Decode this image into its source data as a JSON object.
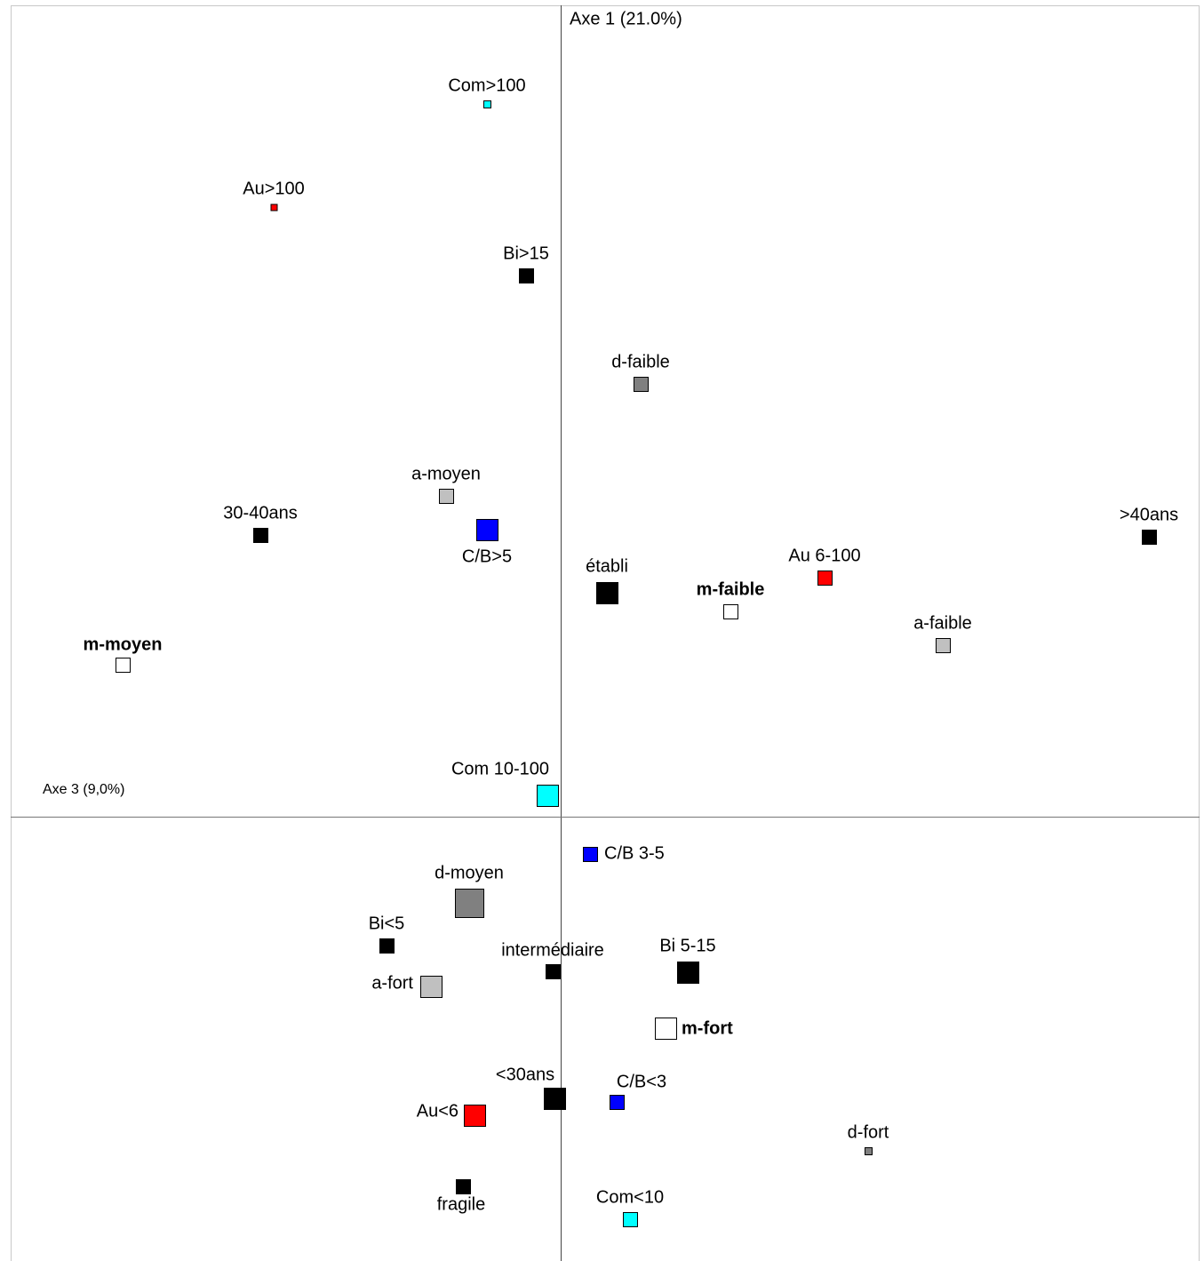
{
  "axes": {
    "axis_1": "Axe 1 (21.0%)",
    "axis_3": "Axe 3 (9,0%)"
  },
  "points": [
    {
      "label": "Com>100"
    },
    {
      "label": "Au>100"
    },
    {
      "label": "Bi>15"
    },
    {
      "label": "d-faible"
    },
    {
      "label": "a-moyen"
    },
    {
      "label": "C/B>5"
    },
    {
      "label": "30-40ans"
    },
    {
      "label": ">40ans"
    },
    {
      "label": "Au 6-100"
    },
    {
      "label": "établi"
    },
    {
      "label": "m-faible"
    },
    {
      "label": "a-faible"
    },
    {
      "label": "m-moyen"
    },
    {
      "label": "Com 10-100"
    },
    {
      "label": "C/B 3-5"
    },
    {
      "label": "d-moyen"
    },
    {
      "label": "Bi<5"
    },
    {
      "label": "intermédiaire"
    },
    {
      "label": "Bi 5-15"
    },
    {
      "label": "a-fort"
    },
    {
      "label": "m-fort"
    },
    {
      "label": "<30ans"
    },
    {
      "label": "C/B<3"
    },
    {
      "label": "Au<6"
    },
    {
      "label": "d-fort"
    },
    {
      "label": "fragile"
    },
    {
      "label": "Com<10"
    }
  ]
}
